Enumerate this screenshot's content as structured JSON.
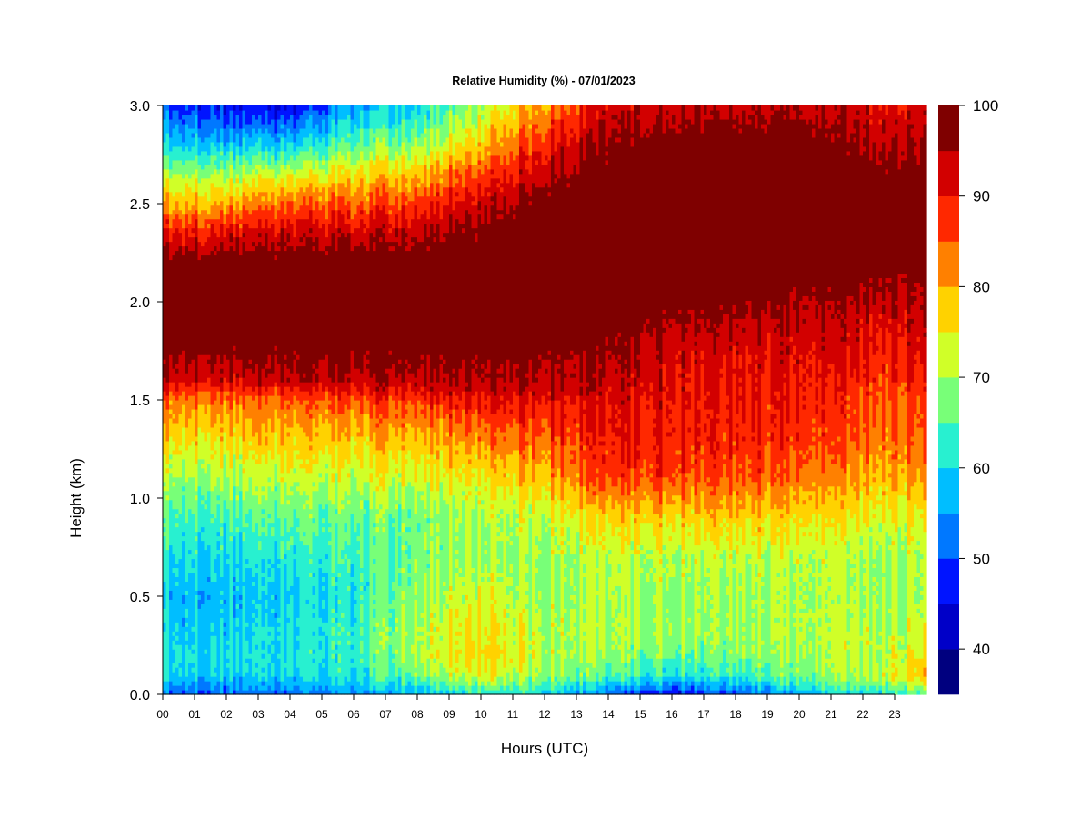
{
  "chart_data": {
    "type": "heatmap",
    "title": "Relative Humidity (%) - 07/01/2023",
    "xlabel": "Hours (UTC)",
    "ylabel": "Height (km)",
    "xlim": [
      0,
      24
    ],
    "ylim": [
      0,
      3
    ],
    "x_ticks": [
      "00",
      "01",
      "02",
      "03",
      "04",
      "05",
      "06",
      "07",
      "08",
      "09",
      "10",
      "11",
      "12",
      "13",
      "14",
      "15",
      "16",
      "17",
      "18",
      "19",
      "20",
      "21",
      "22",
      "23"
    ],
    "y_ticks": [
      "0.0",
      "0.5",
      "1.0",
      "1.5",
      "2.0",
      "2.5",
      "3.0"
    ],
    "colorbar": {
      "levels": [
        35,
        40,
        45,
        50,
        55,
        60,
        65,
        70,
        75,
        80,
        85,
        90,
        95,
        100
      ],
      "labels": [
        "40",
        "50",
        "60",
        "70",
        "80",
        "90",
        "100"
      ],
      "colors": [
        "#00007F",
        "#0000C8",
        "#0014FF",
        "#0078FF",
        "#00BEFF",
        "#28F0D0",
        "#78FF78",
        "#D0FF28",
        "#FFD200",
        "#FF8000",
        "#FF2800",
        "#D20000",
        "#7F0000"
      ]
    },
    "heights_km": [
      0.0,
      0.05,
      0.1,
      0.2,
      0.3,
      0.5,
      0.7,
      0.9,
      1.1,
      1.3,
      1.5,
      1.6,
      1.8,
      2.0,
      2.2,
      2.35,
      2.5,
      2.65,
      2.8,
      3.0
    ],
    "profiles": [
      {
        "hour": 0,
        "rh": [
          52,
          56,
          60,
          61,
          60,
          58,
          61,
          64,
          70,
          77,
          84,
          93,
          98,
          99,
          98,
          90,
          80,
          70,
          60,
          50
        ]
      },
      {
        "hour": 2,
        "rh": [
          50,
          55,
          59,
          60,
          59,
          57,
          60,
          64,
          70,
          76,
          83,
          92,
          98,
          99,
          98,
          91,
          80,
          70,
          58,
          46
        ]
      },
      {
        "hour": 4,
        "rh": [
          50,
          55,
          59,
          60,
          60,
          58,
          61,
          65,
          71,
          77,
          84,
          93,
          98,
          99,
          98,
          92,
          84,
          72,
          58,
          44
        ]
      },
      {
        "hour": 6,
        "rh": [
          54,
          58,
          61,
          63,
          63,
          62,
          64,
          66,
          72,
          78,
          86,
          94,
          98,
          99,
          98,
          93,
          85,
          76,
          66,
          56
        ]
      },
      {
        "hour": 8,
        "rh": [
          58,
          62,
          68,
          72,
          72,
          70,
          68,
          68,
          74,
          80,
          88,
          95,
          98,
          99,
          99,
          95,
          88,
          80,
          70,
          60
        ]
      },
      {
        "hour": 10,
        "rh": [
          62,
          68,
          74,
          77,
          76,
          73,
          70,
          70,
          75,
          82,
          90,
          95,
          98,
          99,
          99,
          97,
          93,
          86,
          78,
          70
        ]
      },
      {
        "hour": 12,
        "rh": [
          62,
          66,
          70,
          72,
          72,
          70,
          70,
          73,
          80,
          86,
          92,
          95,
          98,
          99,
          99,
          99,
          98,
          95,
          90,
          82
        ]
      },
      {
        "hour": 14,
        "rh": [
          50,
          58,
          64,
          68,
          70,
          70,
          71,
          76,
          86,
          89,
          91,
          93,
          96,
          99,
          99,
          99,
          99,
          98,
          96,
          92
        ]
      },
      {
        "hour": 16,
        "rh": [
          46,
          55,
          62,
          67,
          70,
          70,
          72,
          78,
          87,
          90,
          91,
          92,
          94,
          98,
          99,
          99,
          99,
          99,
          98,
          94
        ]
      },
      {
        "hour": 18,
        "rh": [
          50,
          58,
          64,
          68,
          70,
          70,
          72,
          78,
          86,
          89,
          90,
          91,
          93,
          97,
          99,
          99,
          99,
          99,
          98,
          94
        ]
      },
      {
        "hour": 20,
        "rh": [
          56,
          62,
          66,
          69,
          70,
          70,
          71,
          76,
          83,
          87,
          89,
          90,
          92,
          95,
          99,
          99,
          99,
          99,
          98,
          94
        ]
      },
      {
        "hour": 22,
        "rh": [
          60,
          66,
          70,
          71,
          71,
          70,
          70,
          74,
          80,
          84,
          86,
          88,
          91,
          94,
          99,
          99,
          99,
          98,
          95,
          92
        ]
      },
      {
        "hour": 24,
        "rh": [
          64,
          72,
          78,
          74,
          72,
          70,
          70,
          74,
          80,
          84,
          86,
          88,
          91,
          94,
          98,
          99,
          99,
          97,
          94,
          92
        ]
      }
    ]
  }
}
